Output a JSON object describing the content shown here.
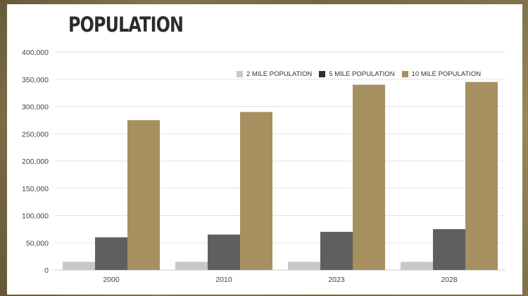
{
  "colors": {
    "two_mile": "#c8c8c8",
    "five_mile": "#5f5f5f",
    "ten_mile": "#a79060"
  },
  "chart_data": {
    "type": "bar",
    "title": "POPULATION",
    "categories": [
      "2000",
      "2010",
      "2023",
      "2028"
    ],
    "series": [
      {
        "name": "2 MILE POPULATION",
        "values": [
          15000,
          15000,
          15000,
          15000
        ]
      },
      {
        "name": "5 MILE POPULATION",
        "values": [
          60000,
          65000,
          70000,
          75000
        ]
      },
      {
        "name": "10 MILE POPULATION",
        "values": [
          275000,
          290000,
          340000,
          345000
        ]
      }
    ],
    "ylim": [
      0,
      400000
    ],
    "yticks": [
      "0",
      "50,000",
      "100,000",
      "150,000",
      "200,000",
      "250,000",
      "300,000",
      "350,000",
      "400,000"
    ],
    "grid": true,
    "legend_position": "top-right"
  }
}
